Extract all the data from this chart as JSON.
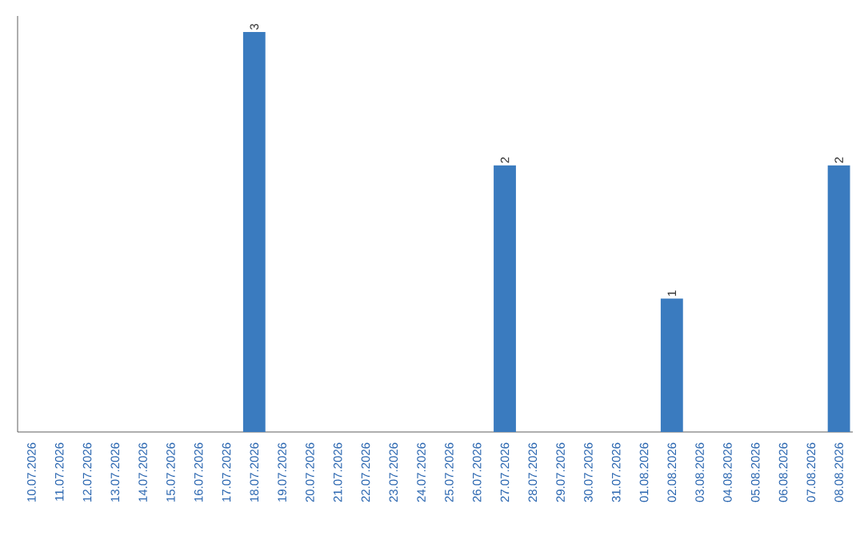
{
  "chart_data": {
    "type": "bar",
    "categories": [
      "10.07.2026",
      "11.07.2026",
      "12.07.2026",
      "13.07.2026",
      "14.07.2026",
      "15.07.2026",
      "16.07.2026",
      "17.07.2026",
      "18.07.2026",
      "19.07.2026",
      "20.07.2026",
      "21.07.2026",
      "22.07.2026",
      "23.07.2026",
      "24.07.2026",
      "25.07.2026",
      "26.07.2026",
      "27.07.2026",
      "28.07.2026",
      "29.07.2026",
      "30.07.2026",
      "31.07.2026",
      "01.08.2026",
      "02.08.2026",
      "03.08.2026",
      "04.08.2026",
      "05.08.2026",
      "06.08.2026",
      "07.08.2026",
      "08.08.2026"
    ],
    "values": [
      0,
      0,
      0,
      0,
      0,
      0,
      0,
      0,
      3,
      0,
      0,
      0,
      0,
      0,
      0,
      0,
      0,
      2,
      0,
      0,
      0,
      0,
      0,
      1,
      0,
      0,
      0,
      0,
      0,
      2
    ],
    "value_labels": [
      null,
      null,
      null,
      null,
      null,
      null,
      null,
      null,
      "3",
      null,
      null,
      null,
      null,
      null,
      null,
      null,
      null,
      "2",
      null,
      null,
      null,
      null,
      null,
      "1",
      null,
      null,
      null,
      null,
      null,
      "2"
    ],
    "color": "#3a7bbf",
    "tick_labels": "x"
  }
}
